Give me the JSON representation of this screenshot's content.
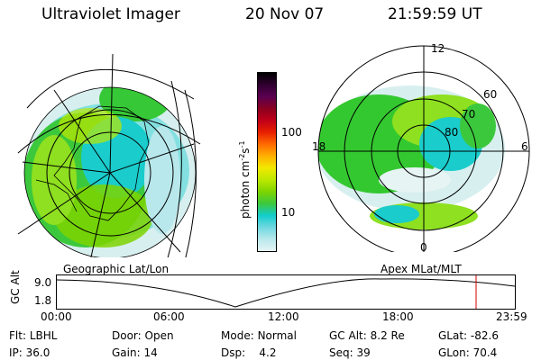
{
  "header": {
    "instrument": "Ultraviolet Imager",
    "date": "20 Nov 07",
    "time": "21:59:59 UT"
  },
  "colorbar": {
    "unit_label": "photon cm",
    "unit_exp1": "-2",
    "unit_s": "s",
    "unit_exp2": "-1",
    "ticks": [
      "100",
      "10"
    ],
    "colors": [
      "#000000",
      "#300030",
      "#5a0050",
      "#8a0020",
      "#c00018",
      "#e82000",
      "#ff6a00",
      "#ffb000",
      "#f2e800",
      "#bde800",
      "#7ed400",
      "#3cc83c",
      "#12cccc",
      "#70d8e0",
      "#b8e8ec",
      "#e6f4f4"
    ]
  },
  "geo_map": {
    "label": "Geographic Lat/Lon"
  },
  "apex_map": {
    "label": "Apex MLat/MLT",
    "mlt_labels": {
      "top": "12",
      "left": "18",
      "right": "6",
      "bottom": "0"
    },
    "lat_labels": [
      "60",
      "70",
      "80"
    ]
  },
  "timeline": {
    "ylabel": "GC Alt",
    "ytop": "9.0",
    "ybottom": "1.8",
    "xticks": [
      "00:00",
      "06:00",
      "12:00",
      "18:00",
      "23:59"
    ],
    "current_marker_color": "#d00000"
  },
  "info": {
    "flt_label": "Flt:",
    "flt_value": "LBHL",
    "ip_label": "IP:",
    "ip_value": "36.0",
    "door_label": "Door:",
    "door_value": "Open",
    "gain_label": "Gain:",
    "gain_value": "14",
    "mode_label": "Mode:",
    "mode_value": "Normal",
    "dsp_label": "Dsp:",
    "dsp_value": "4.2",
    "gcalt_label": "GC Alt:",
    "gcalt_value": "8.2 Re",
    "seq_label": "Seq:",
    "seq_value": "39",
    "glat_label": "GLat:",
    "glat_value": "-82.6",
    "glon_label": "GLon:",
    "glon_value": "70.4"
  },
  "palette": {
    "aurora_green": "#34c830",
    "aurora_lime": "#8ee020",
    "aurora_cyan": "#14c8c8",
    "aurora_pale": "#c8ecec"
  }
}
